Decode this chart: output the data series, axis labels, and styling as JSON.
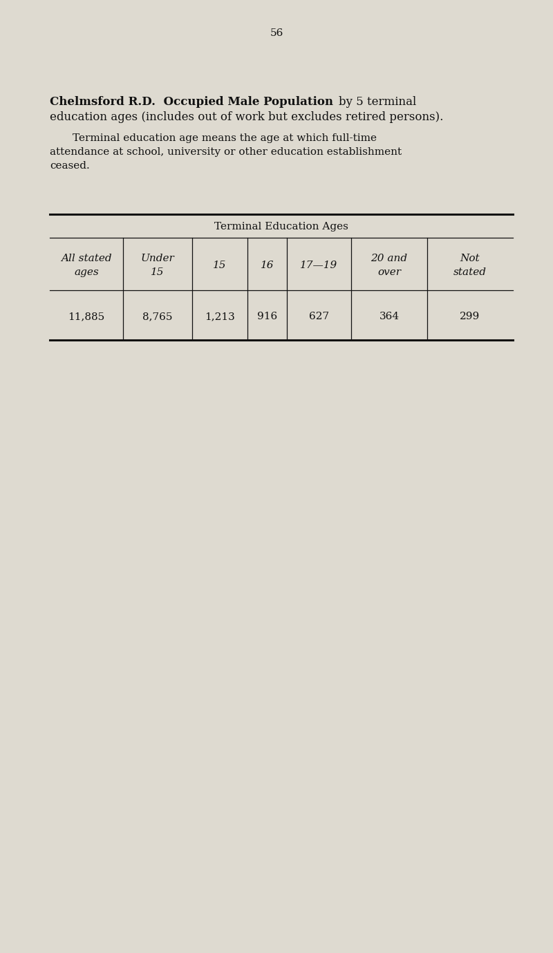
{
  "page_number": "56",
  "title_bold_part": "Chelmsford R.D.  Occupied Male Population",
  "title_normal_part": " by 5 terminal",
  "title_line2": "education ages (includes out of work but excludes retired persons).",
  "subtitle_line1": "Terminal education age means the age at which full-time",
  "subtitle_line2": "attendance at school, university or other education establishment",
  "subtitle_line3": "ceased.",
  "table_header_main": "Terminal Education Ages",
  "col_headers_line1": [
    "All stated",
    "Under",
    "",
    "",
    "",
    "20 and",
    "Not"
  ],
  "col_headers_line2": [
    "ages",
    "15",
    "15",
    "16",
    "17—19",
    "over",
    "stated"
  ],
  "col_values": [
    "11,885",
    "8,765",
    "1,213",
    "916",
    "627",
    "364",
    "299"
  ],
  "background_color": "#dedad0",
  "text_color": "#111111",
  "page_num_fontsize": 11,
  "title_fontsize": 12,
  "subtitle_fontsize": 11,
  "table_fontsize": 11
}
